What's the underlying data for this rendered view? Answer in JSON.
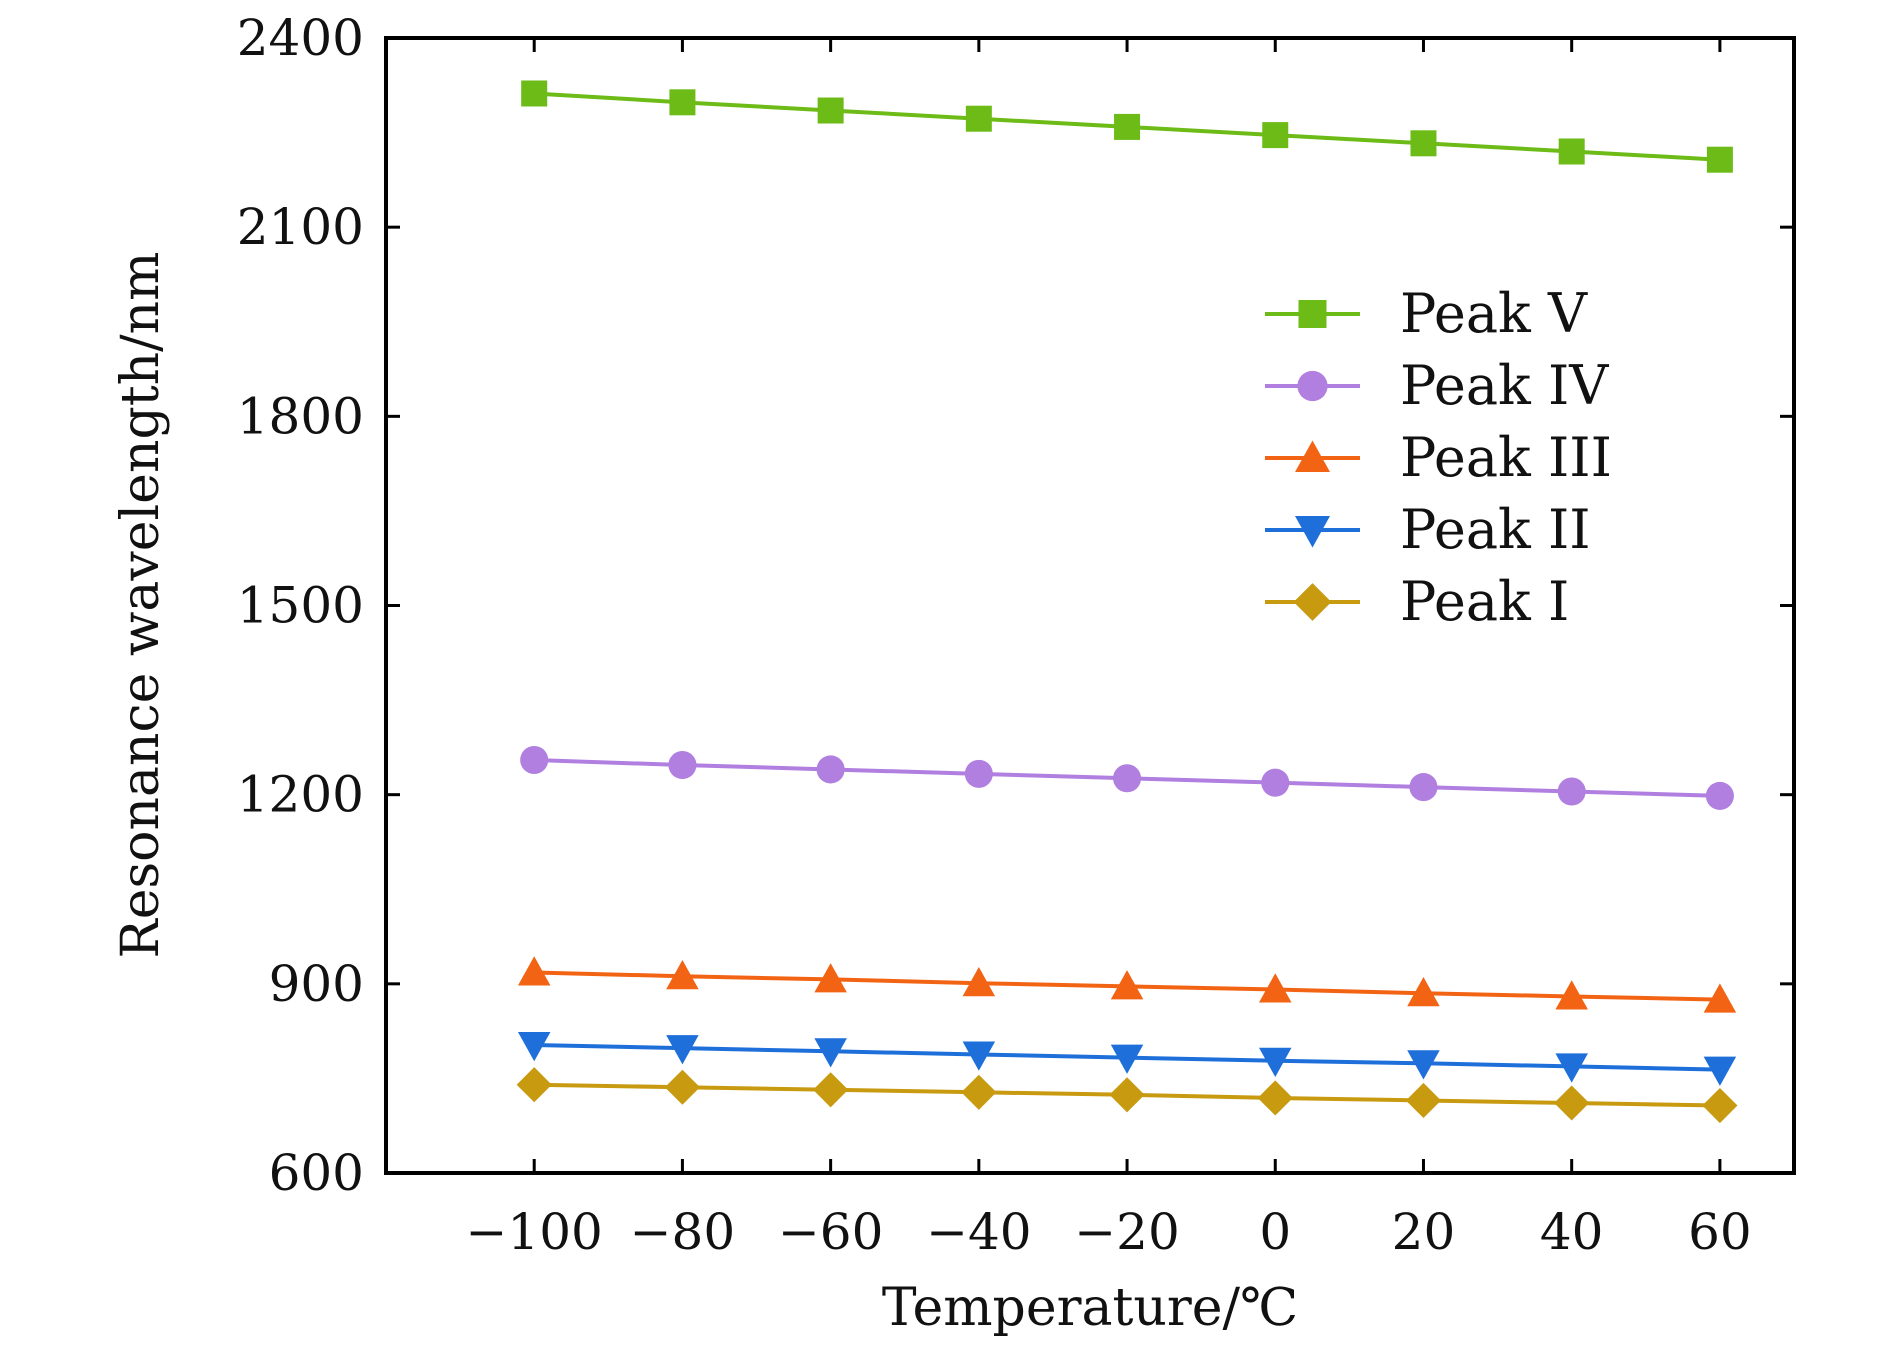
{
  "chart_data": {
    "type": "line",
    "xlabel": "Temperature/℃",
    "ylabel": "Resonance wavelength/nm",
    "x": [
      -100,
      -80,
      -60,
      -40,
      -20,
      0,
      20,
      40,
      60
    ],
    "x_tick_labels": [
      "−100",
      "−80",
      "−60",
      "−40",
      "−20",
      "0",
      "20",
      "40",
      "60"
    ],
    "y_ticks": [
      600,
      900,
      1200,
      1500,
      1800,
      2100,
      2400
    ],
    "y_tick_labels": [
      "600",
      "900",
      "1200",
      "1500",
      "1800",
      "2100",
      "2400"
    ],
    "xlim": [
      -120,
      70
    ],
    "ylim": [
      600,
      2400
    ],
    "grid": false,
    "legend_position": "upper-right",
    "series": [
      {
        "name": "Peak V",
        "marker": "square",
        "color": "#6cbb16",
        "values": [
          2312,
          2298,
          2285,
          2272,
          2259,
          2246,
          2233,
          2220,
          2207
        ]
      },
      {
        "name": "Peak IV",
        "marker": "circle",
        "color": "#b07fe0",
        "values": [
          1255,
          1247,
          1240,
          1233,
          1226,
          1219,
          1212,
          1205,
          1198
        ]
      },
      {
        "name": "Peak III",
        "marker": "triangle-up",
        "color": "#f26414",
        "values": [
          918,
          912,
          907,
          901,
          896,
          891,
          885,
          880,
          875
        ]
      },
      {
        "name": "Peak II",
        "marker": "triangle-down",
        "color": "#1e6fd9",
        "values": [
          803,
          798,
          793,
          788,
          783,
          778,
          774,
          769,
          764
        ]
      },
      {
        "name": "Peak I",
        "marker": "diamond",
        "color": "#c89a10",
        "values": [
          740,
          736,
          732,
          728,
          724,
          719,
          715,
          711,
          707
        ]
      }
    ]
  }
}
